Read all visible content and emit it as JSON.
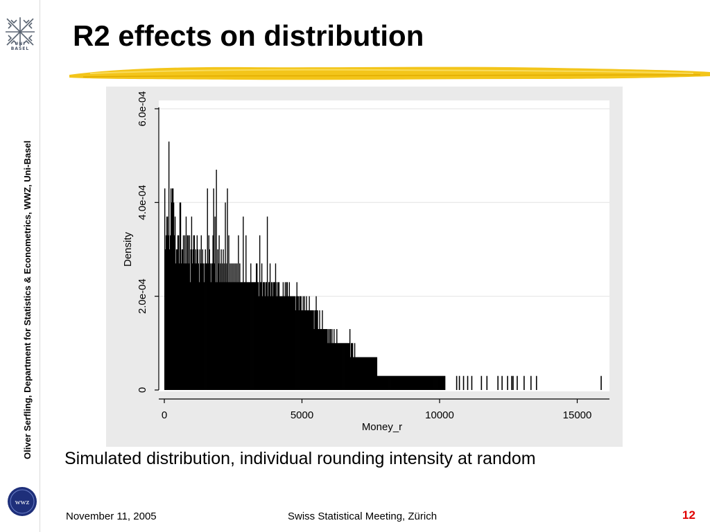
{
  "slide": {
    "title": "R2 effects on distribution",
    "caption": "Simulated distribution, individual rounding intensity at random",
    "author_vertical": "Oliver Serfling, Department for Statistics & Econometrics, WWZ,  Uni-Basel",
    "footer_date": "November 11, 2005",
    "footer_event": "Swiss Statistical Meeting, Zürich",
    "page_number": "12",
    "logo_top_text": [
      "UNI",
      "BASEL"
    ],
    "logo_bottom_text": "wwz",
    "accent_red": "#e00000",
    "brush_color": "#f2c200"
  },
  "chart_data": {
    "type": "bar",
    "subtype": "histogram",
    "xlabel": "Money_r",
    "ylabel": "Density",
    "xlim": [
      -100,
      16000
    ],
    "ylim": [
      0,
      0.0006
    ],
    "xticks": [
      0,
      5000,
      10000,
      15000
    ],
    "xtick_labels": [
      "0",
      "5000",
      "10000",
      "15000"
    ],
    "yticks": [
      0,
      0.0002,
      0.0004,
      0.0006
    ],
    "ytick_labels": [
      "0",
      "2.0e-04",
      "4.0e-04",
      "6.0e-04"
    ],
    "grid": true,
    "bar_color": "#000000",
    "bin_width": 25,
    "bin_start": 0,
    "values": [
      0.00043,
      0.0003,
      0.00033,
      0.00037,
      0.00037,
      0.00033,
      0.00053,
      0.0003,
      0.00033,
      0.00043,
      0.0004,
      0.00043,
      0.00043,
      0.0004,
      0.00033,
      0.00037,
      0.00027,
      0.0003,
      0.0003,
      0.00033,
      0.00033,
      0.00027,
      0.0004,
      0.0004,
      0.00027,
      0.0003,
      0.0003,
      0.00033,
      0.00027,
      0.00033,
      0.00027,
      0.00037,
      0.00027,
      0.00033,
      0.00033,
      0.00027,
      0.00033,
      0.00023,
      0.0003,
      0.00037,
      0.00027,
      0.0003,
      0.00033,
      0.00033,
      0.00027,
      0.0003,
      0.00027,
      0.00033,
      0.0003,
      0.00027,
      0.00023,
      0.0003,
      0.00027,
      0.00033,
      0.00027,
      0.0003,
      0.00027,
      0.00023,
      0.00027,
      0.0003,
      0.00027,
      0.00027,
      0.00043,
      0.00027,
      0.00033,
      0.0003,
      0.00027,
      0.00023,
      0.00027,
      0.00027,
      0.00033,
      0.00043,
      0.00027,
      0.00037,
      0.00023,
      0.00047,
      0.00023,
      0.0003,
      0.00027,
      0.00033,
      0.00023,
      0.00027,
      0.0003,
      0.00023,
      0.00027,
      0.0003,
      0.00023,
      0.00027,
      0.0004,
      0.00023,
      0.00027,
      0.00043,
      0.00023,
      0.00033,
      0.00023,
      0.00027,
      0.00023,
      0.00027,
      0.00023,
      0.00027,
      0.00023,
      0.00027,
      0.00023,
      0.00027,
      0.00023,
      0.00027,
      0.00023,
      0.00033,
      0.00023,
      0.00027,
      0.00023,
      0.00023,
      0.00023,
      0.00023,
      0.00037,
      0.00023,
      0.00023,
      0.00023,
      0.00033,
      0.00023,
      0.00023,
      0.00023,
      0.00023,
      0.00023,
      0.00023,
      0.00027,
      0.00023,
      0.00023,
      0.00023,
      0.00023,
      0.00023,
      0.00023,
      0.00023,
      0.00027,
      0.00027,
      0.00023,
      0.00023,
      0.0002,
      0.00033,
      0.00023,
      0.00023,
      0.00027,
      0.0002,
      0.00023,
      0.00023,
      0.00023,
      0.0002,
      0.00023,
      0.00023,
      0.00037,
      0.0002,
      0.00023,
      0.00023,
      0.00027,
      0.0002,
      0.00023,
      0.00023,
      0.0002,
      0.00023,
      0.00023,
      0.00023,
      0.00027,
      0.0002,
      0.00023,
      0.0002,
      0.00023,
      0.00023,
      0.0002,
      0.0002,
      0.0002,
      0.0002,
      0.0002,
      0.00023,
      0.0002,
      0.0002,
      0.00023,
      0.0002,
      0.00023,
      0.00023,
      0.0002,
      0.0002,
      0.00023,
      0.0002,
      0.0002,
      0.0002,
      0.0002,
      0.0002,
      0.0002,
      0.0002,
      0.0002,
      0.00017,
      0.0002,
      0.00023,
      0.0002,
      0.0002,
      0.00017,
      0.0002,
      0.0002,
      0.0002,
      0.00017,
      0.00017,
      0.0002,
      0.00017,
      0.0002,
      0.00017,
      0.00017,
      0.0002,
      0.00017,
      0.00017,
      0.00017,
      0.0002,
      0.00017,
      0.00017,
      0.00017,
      0.00017,
      0.00017,
      0.00017,
      0.00013,
      0.00017,
      0.00017,
      0.0002,
      0.00017,
      0.00017,
      0.00013,
      0.00013,
      0.00017,
      0.00013,
      0.00013,
      0.00013,
      0.00017,
      0.00013,
      0.00013,
      0.00013,
      0.00013,
      0.00013,
      0.00013,
      0.00013,
      0.0001,
      0.00013,
      0.0001,
      0.00013,
      0.00013,
      0.0001,
      0.00013,
      0.0001,
      0.0001,
      0.00013,
      0.0001,
      0.0001,
      0.0001,
      0.00013,
      0.0001,
      0.0001,
      0.0001,
      0.0001,
      0.0001,
      0.0001,
      0.0001,
      0.0001,
      0.0001,
      0.0001,
      0.0001,
      0.0001,
      0.0001,
      0.0001,
      0.0001,
      0.0001,
      0.0001,
      0.0001,
      0.00013,
      7e-05,
      0.0001,
      0.0001,
      0.0001,
      7e-05,
      7e-05,
      0.0001,
      7e-05,
      7e-05,
      7e-05,
      7e-05,
      7e-05,
      7e-05,
      7e-05,
      7e-05,
      7e-05,
      7e-05,
      7e-05,
      7e-05,
      7e-05,
      7e-05,
      7e-05,
      7e-05,
      7e-05,
      7e-05,
      7e-05,
      7e-05,
      7e-05,
      7e-05,
      7e-05,
      7e-05,
      7e-05,
      7e-05,
      7e-05,
      7e-05,
      7e-05,
      7e-05,
      7e-05,
      7e-05,
      3e-05,
      3e-05,
      3e-05,
      3e-05,
      3e-05,
      3e-05,
      3e-05,
      3e-05,
      3e-05,
      3e-05,
      3e-05,
      3e-05,
      3e-05,
      3e-05,
      3e-05,
      3e-05,
      3e-05,
      3e-05,
      3e-05,
      3e-05,
      3e-05,
      3e-05,
      3e-05,
      3e-05,
      3e-05,
      3e-05,
      3e-05,
      3e-05,
      3e-05,
      3e-05,
      3e-05,
      3e-05,
      3e-05,
      3e-05,
      3e-05,
      3e-05,
      3e-05,
      3e-05,
      3e-05,
      3e-05,
      3e-05,
      3e-05,
      3e-05,
      3e-05,
      3e-05,
      3e-05,
      3e-05,
      3e-05,
      3e-05,
      3e-05,
      3e-05,
      3e-05,
      3e-05,
      3e-05,
      3e-05,
      3e-05,
      3e-05,
      3e-05,
      3e-05,
      3e-05,
      3e-05,
      3e-05,
      3e-05,
      3e-05,
      3e-05,
      3e-05,
      3e-05,
      3e-05,
      3e-05,
      3e-05,
      3e-05,
      3e-05,
      3e-05,
      3e-05,
      3e-05,
      3e-05,
      3e-05,
      3e-05,
      3e-05,
      3e-05,
      3e-05,
      3e-05,
      3e-05,
      3e-05,
      3e-05,
      3e-05,
      3e-05,
      3e-05,
      3e-05,
      3e-05,
      3e-05,
      3e-05,
      3e-05,
      3e-05,
      3e-05,
      3e-05,
      3e-05,
      3e-05,
      3e-05
    ],
    "outliers": [
      10600,
      10700,
      10850,
      11000,
      11150,
      11500,
      11700,
      12100,
      12250,
      12450,
      12600,
      12650,
      12800,
      13050,
      13300,
      13500,
      15850
    ],
    "outlier_value": 3e-05
  }
}
